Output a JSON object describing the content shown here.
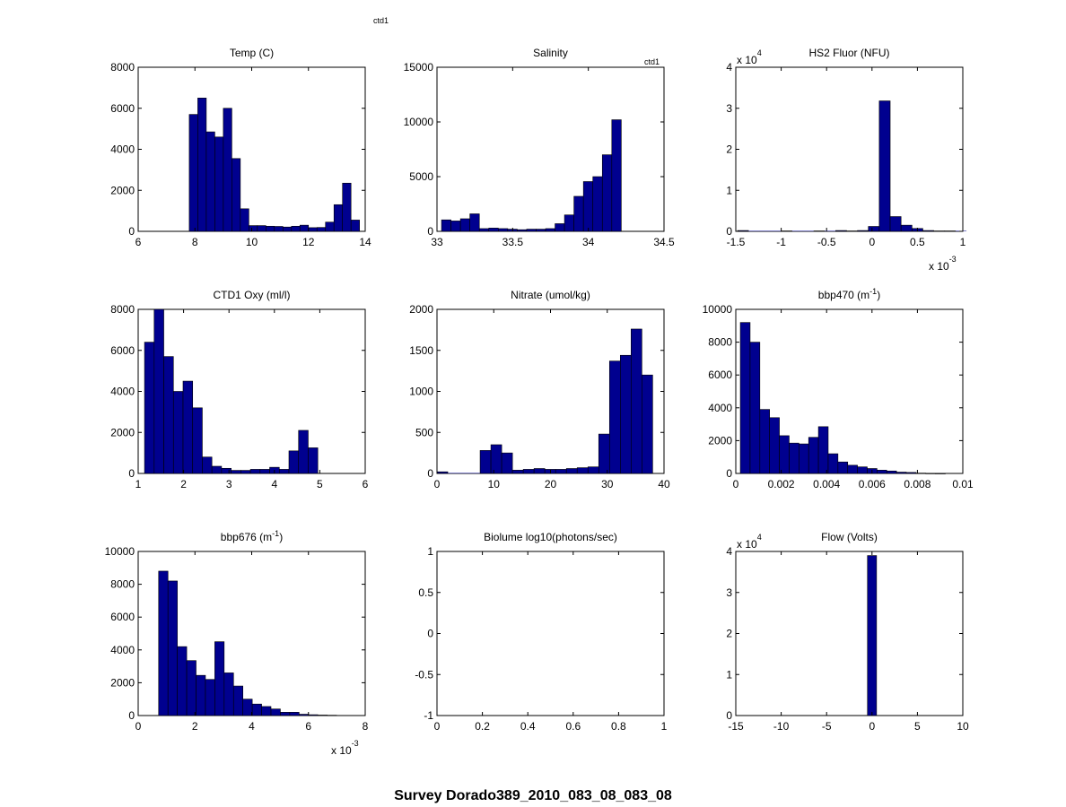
{
  "figure": {
    "title": "Survey Dorado389_2010_083_08_083_08",
    "corner_labels": [
      "ctd1",
      "ctd1"
    ],
    "bar_color": "#00008f"
  },
  "chart_data": [
    {
      "type": "bar",
      "title": "Temp (C)",
      "xlim": [
        6,
        14
      ],
      "ylim": [
        0,
        8000
      ],
      "xticks": [
        "6",
        "8",
        "10",
        "12",
        "14"
      ],
      "yticks": [
        "0",
        "2000",
        "4000",
        "6000",
        "8000"
      ],
      "bin_start": 7.8,
      "bin_width": 0.3,
      "values": [
        5700,
        6500,
        4850,
        4600,
        6000,
        3550,
        1100,
        280,
        280,
        250,
        240,
        210,
        250,
        300,
        180,
        190,
        450,
        1300,
        2350,
        550
      ]
    },
    {
      "type": "bar",
      "title": "Salinity",
      "corner_label": "ctd1",
      "xlim": [
        33,
        34.5
      ],
      "ylim": [
        0,
        15000
      ],
      "xticks": [
        "33",
        "33.5",
        "34",
        "34.5"
      ],
      "yticks": [
        "0",
        "5000",
        "10000",
        "15000"
      ],
      "bin_start": 33.03,
      "bin_width": 0.0625,
      "values": [
        1050,
        950,
        1150,
        1600,
        250,
        300,
        250,
        200,
        150,
        200,
        200,
        250,
        700,
        1500,
        3200,
        4550,
        5000,
        7000,
        10200
      ]
    },
    {
      "type": "bar",
      "title": "HS2 Fluor (NFU)",
      "xlim": [
        -1.5,
        1
      ],
      "ylim": [
        0,
        4
      ],
      "xticks": [
        "-1.5",
        "-1",
        "-0.5",
        "0",
        "0.5",
        "1"
      ],
      "yticks": [
        "0",
        "1",
        "2",
        "3",
        "4"
      ],
      "y_multiplier": "x 10^4",
      "x_multiplier": "x 10^-3",
      "bin_start": -1.48,
      "bin_width": 0.12,
      "values": [
        0.02,
        0.0,
        0.0,
        0.0,
        0.01,
        0.0,
        0.0,
        0.01,
        0.0,
        0.02,
        0.01,
        0.02,
        0.12,
        3.18,
        0.36,
        0.15,
        0.07,
        0.02,
        0.01,
        0.01,
        0.0
      ]
    },
    {
      "type": "bar",
      "title": "CTD1 Oxy (ml/l)",
      "xlim": [
        1,
        6
      ],
      "ylim": [
        0,
        8000
      ],
      "xticks": [
        "1",
        "2",
        "3",
        "4",
        "5",
        "6"
      ],
      "yticks": [
        "0",
        "2000",
        "4000",
        "6000",
        "8000"
      ],
      "bin_start": 1.14,
      "bin_width": 0.212,
      "values": [
        6400,
        8000,
        5700,
        4000,
        4500,
        3200,
        800,
        350,
        250,
        150,
        150,
        200,
        200,
        300,
        200,
        1100,
        2100,
        1250
      ]
    },
    {
      "type": "bar",
      "title": "Nitrate (umol/kg)",
      "xlim": [
        0,
        40
      ],
      "ylim": [
        0,
        2000
      ],
      "xticks": [
        "0",
        "10",
        "20",
        "30",
        "40"
      ],
      "yticks": [
        "0",
        "500",
        "1000",
        "1500",
        "2000"
      ],
      "bin_start": 0,
      "bin_width": 1.9,
      "values": [
        20,
        0,
        0,
        0,
        280,
        350,
        250,
        40,
        50,
        60,
        50,
        50,
        60,
        70,
        80,
        480,
        1370,
        1440,
        1760,
        1200
      ]
    },
    {
      "type": "bar",
      "title": "bbp470 (m^-1)",
      "xlim": [
        0,
        0.01
      ],
      "ylim": [
        0,
        10000
      ],
      "xticks": [
        "0",
        "0.002",
        "0.004",
        "0.006",
        "0.008",
        "0.01"
      ],
      "yticks": [
        "0",
        "2000",
        "4000",
        "6000",
        "8000",
        "10000"
      ],
      "bin_start": 0.0002,
      "bin_width": 0.00043,
      "values": [
        9200,
        8000,
        3900,
        3400,
        2300,
        1850,
        1800,
        2200,
        2850,
        1200,
        700,
        500,
        400,
        300,
        200,
        150,
        80,
        60,
        20,
        10,
        5
      ]
    },
    {
      "type": "bar",
      "title": "bbp676 (m^-1)",
      "xlim": [
        0,
        8
      ],
      "ylim": [
        0,
        10000
      ],
      "xticks": [
        "0",
        "2",
        "4",
        "6",
        "8"
      ],
      "yticks": [
        "0",
        "2000",
        "4000",
        "6000",
        "8000",
        "10000"
      ],
      "x_multiplier": "x 10^-3",
      "bin_start": 0.72,
      "bin_width": 0.33,
      "values": [
        8800,
        8200,
        4200,
        3350,
        2450,
        2200,
        4500,
        2600,
        1800,
        1000,
        700,
        550,
        400,
        200,
        200,
        80,
        50,
        30,
        20
      ]
    },
    {
      "type": "bar",
      "title": "Biolume log10(photons/sec)",
      "xlim": [
        0,
        1
      ],
      "ylim": [
        -1,
        1
      ],
      "xticks": [
        "0",
        "0.2",
        "0.4",
        "0.6",
        "0.8",
        "1"
      ],
      "yticks": [
        "-1",
        "-0.5",
        "0",
        "0.5",
        "1"
      ],
      "bin_start": 0,
      "bin_width": 0.05,
      "values": []
    },
    {
      "type": "bar",
      "title": "Flow (Volts)",
      "xlim": [
        -15,
        10
      ],
      "ylim": [
        0,
        4
      ],
      "xticks": [
        "-15",
        "-10",
        "-5",
        "0",
        "5",
        "10"
      ],
      "yticks": [
        "0",
        "1",
        "2",
        "3",
        "4"
      ],
      "y_multiplier": "x 10^4",
      "bin_start": -0.5,
      "bin_width": 1.0,
      "values": [
        3.9
      ]
    }
  ]
}
